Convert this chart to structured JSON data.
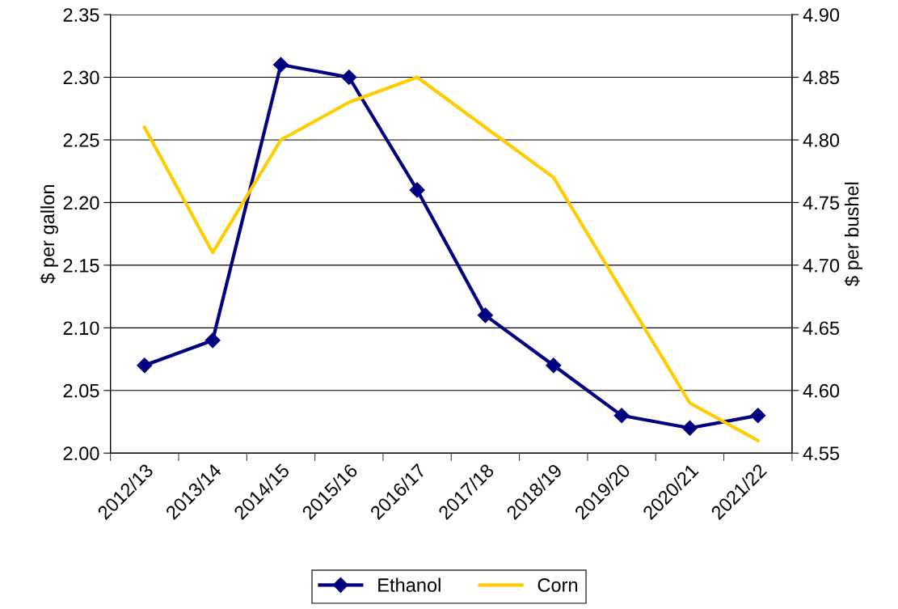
{
  "chart_data": {
    "type": "line",
    "categories": [
      "2012/13",
      "2013/14",
      "2014/15",
      "2015/16",
      "2016/17",
      "2017/18",
      "2018/19",
      "2019/20",
      "2020/21",
      "2021/22"
    ],
    "ylabel": "$ per gallon",
    "y2label": "$ per bushel",
    "ylim": [
      2.0,
      2.35
    ],
    "yticks": [
      {
        "value": 2.0,
        "label": "2.00"
      },
      {
        "value": 2.05,
        "label": "2.05"
      },
      {
        "value": 2.1,
        "label": "2.10"
      },
      {
        "value": 2.15,
        "label": "2.15"
      },
      {
        "value": 2.2,
        "label": "2.20"
      },
      {
        "value": 2.25,
        "label": "2.25"
      },
      {
        "value": 2.3,
        "label": "2.30"
      },
      {
        "value": 2.35,
        "label": "2.35"
      }
    ],
    "y2lim": [
      4.55,
      4.9
    ],
    "y2ticks": [
      {
        "value": 4.55,
        "label": "4.55"
      },
      {
        "value": 4.6,
        "label": "4.60"
      },
      {
        "value": 4.65,
        "label": "4.65"
      },
      {
        "value": 4.7,
        "label": "4.70"
      },
      {
        "value": 4.75,
        "label": "4.75"
      },
      {
        "value": 4.8,
        "label": "4.80"
      },
      {
        "value": 4.85,
        "label": "4.85"
      },
      {
        "value": 4.9,
        "label": "4.90"
      }
    ],
    "grid": "y",
    "legend": "bottom",
    "series": [
      {
        "name": "Ethanol",
        "color": "#000080",
        "marker": "diamond",
        "values": [
          2.07,
          2.09,
          2.31,
          2.3,
          2.21,
          2.11,
          2.07,
          2.03,
          2.02,
          2.03
        ]
      },
      {
        "name": "Corn",
        "color": "#ffcc00",
        "marker": "none",
        "axis": "y2",
        "values": [
          4.81,
          4.71,
          4.8,
          4.83,
          4.85,
          4.81,
          4.77,
          4.68,
          4.59,
          4.56
        ]
      }
    ]
  }
}
